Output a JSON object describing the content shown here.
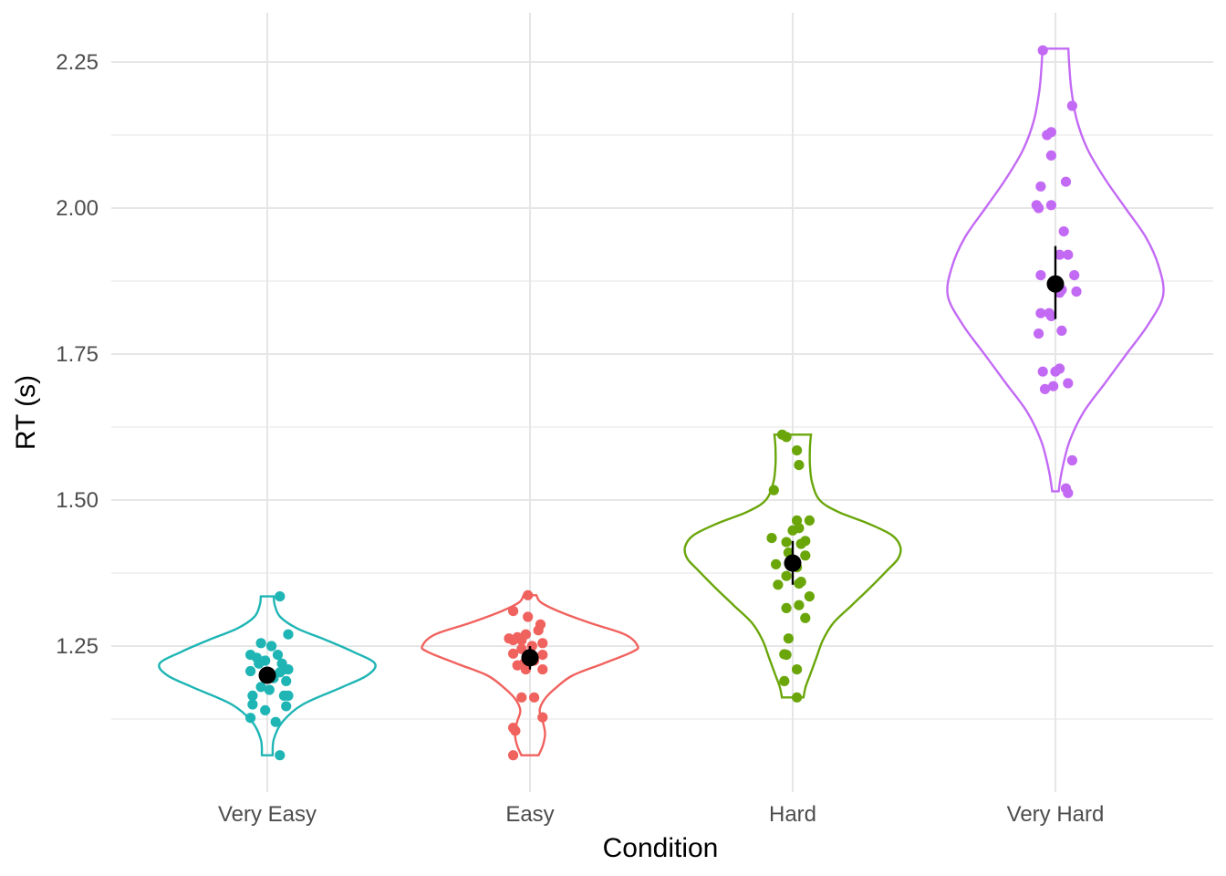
{
  "chart_data": {
    "type": "violin",
    "xlabel": "Condition",
    "ylabel": "RT (s)",
    "ylim": [
      1.04,
      2.29
    ],
    "y_ticks": [
      "1.25",
      "1.50",
      "1.75",
      "2.00",
      "2.25"
    ],
    "grid": true,
    "legend": "none",
    "categories": [
      "Very Easy",
      "Easy",
      "Hard",
      "Very Hard"
    ],
    "series": [
      {
        "category": "Very Easy",
        "color": "#1fb5b5",
        "mean": 1.2,
        "ci": [
          1.186,
          1.214
        ],
        "violin": {
          "min": 1.063,
          "max": 1.335,
          "profile": [
            [
              1.063,
              0.05
            ],
            [
              1.09,
              0.06
            ],
            [
              1.12,
              0.14
            ],
            [
              1.15,
              0.33
            ],
            [
              1.18,
              0.7
            ],
            [
              1.2,
              0.93
            ],
            [
              1.22,
              1.0
            ],
            [
              1.24,
              0.8
            ],
            [
              1.26,
              0.55
            ],
            [
              1.28,
              0.28
            ],
            [
              1.3,
              0.12
            ],
            [
              1.32,
              0.07
            ],
            [
              1.335,
              0.06
            ]
          ]
        },
        "points": [
          [
            0.06,
            1.335
          ],
          [
            0.1,
            1.27
          ],
          [
            0.02,
            1.25
          ],
          [
            -0.03,
            1.255
          ],
          [
            0.05,
            1.235
          ],
          [
            -0.08,
            1.235
          ],
          [
            -0.05,
            1.23
          ],
          [
            -0.01,
            1.225
          ],
          [
            0.07,
            1.22
          ],
          [
            -0.04,
            1.22
          ],
          [
            0.08,
            1.21
          ],
          [
            0.1,
            1.21
          ],
          [
            -0.08,
            1.207
          ],
          [
            0.06,
            1.205
          ],
          [
            0.03,
            1.195
          ],
          [
            0.09,
            1.19
          ],
          [
            -0.03,
            1.18
          ],
          [
            0.01,
            1.175
          ],
          [
            0.08,
            1.165
          ],
          [
            0.1,
            1.165
          ],
          [
            -0.07,
            1.165
          ],
          [
            -0.07,
            1.15
          ],
          [
            0.09,
            1.147
          ],
          [
            -0.01,
            1.14
          ],
          [
            -0.08,
            1.127
          ],
          [
            0.04,
            1.12
          ],
          [
            0.06,
            1.063
          ]
        ]
      },
      {
        "category": "Easy",
        "color": "#f0625e",
        "mean": 1.23,
        "ci": [
          1.21,
          1.25
        ],
        "violin": {
          "min": 1.063,
          "max": 1.337,
          "profile": [
            [
              1.063,
              0.08
            ],
            [
              1.08,
              0.12
            ],
            [
              1.1,
              0.14
            ],
            [
              1.12,
              0.12
            ],
            [
              1.14,
              0.09
            ],
            [
              1.16,
              0.14
            ],
            [
              1.18,
              0.25
            ],
            [
              1.2,
              0.4
            ],
            [
              1.22,
              0.68
            ],
            [
              1.24,
              0.95
            ],
            [
              1.25,
              1.0
            ],
            [
              1.27,
              0.88
            ],
            [
              1.29,
              0.55
            ],
            [
              1.31,
              0.26
            ],
            [
              1.325,
              0.1
            ],
            [
              1.337,
              0.06
            ]
          ]
        },
        "points": [
          [
            -0.01,
            1.337
          ],
          [
            -0.08,
            1.31
          ],
          [
            -0.01,
            1.3
          ],
          [
            0.05,
            1.287
          ],
          [
            0.04,
            1.277
          ],
          [
            -0.02,
            1.27
          ],
          [
            -0.06,
            1.265
          ],
          [
            -0.1,
            1.263
          ],
          [
            -0.08,
            1.26
          ],
          [
            -0.04,
            1.26
          ],
          [
            0.06,
            1.255
          ],
          [
            0.01,
            1.25
          ],
          [
            -0.04,
            1.245
          ],
          [
            -0.08,
            1.237
          ],
          [
            0.06,
            1.235
          ],
          [
            0.0,
            1.23
          ],
          [
            0.02,
            1.225
          ],
          [
            -0.03,
            1.22
          ],
          [
            -0.06,
            1.217
          ],
          [
            -0.02,
            1.21
          ],
          [
            0.06,
            1.21
          ],
          [
            -0.04,
            1.162
          ],
          [
            0.02,
            1.162
          ],
          [
            0.06,
            1.128
          ],
          [
            -0.08,
            1.11
          ],
          [
            -0.07,
            1.105
          ],
          [
            -0.08,
            1.063
          ]
        ]
      },
      {
        "category": "Hard",
        "color": "#6aa60a",
        "mean": 1.392,
        "ci": [
          1.355,
          1.43
        ],
        "violin": {
          "min": 1.162,
          "max": 1.612,
          "profile": [
            [
              1.162,
              0.1
            ],
            [
              1.18,
              0.12
            ],
            [
              1.2,
              0.16
            ],
            [
              1.23,
              0.22
            ],
            [
              1.26,
              0.28
            ],
            [
              1.29,
              0.38
            ],
            [
              1.32,
              0.55
            ],
            [
              1.35,
              0.72
            ],
            [
              1.38,
              0.88
            ],
            [
              1.4,
              0.98
            ],
            [
              1.42,
              1.0
            ],
            [
              1.44,
              0.92
            ],
            [
              1.46,
              0.7
            ],
            [
              1.48,
              0.42
            ],
            [
              1.5,
              0.25
            ],
            [
              1.53,
              0.18
            ],
            [
              1.56,
              0.16
            ],
            [
              1.59,
              0.16
            ],
            [
              1.612,
              0.17
            ]
          ]
        },
        "points": [
          [
            -0.05,
            1.612
          ],
          [
            -0.03,
            1.608
          ],
          [
            0.02,
            1.585
          ],
          [
            0.03,
            1.56
          ],
          [
            -0.09,
            1.517
          ],
          [
            0.02,
            1.465
          ],
          [
            0.08,
            1.465
          ],
          [
            0.03,
            1.452
          ],
          [
            0.0,
            1.448
          ],
          [
            -0.1,
            1.435
          ],
          [
            0.06,
            1.43
          ],
          [
            -0.03,
            1.428
          ],
          [
            0.04,
            1.425
          ],
          [
            -0.02,
            1.41
          ],
          [
            0.06,
            1.405
          ],
          [
            -0.08,
            1.39
          ],
          [
            0.02,
            1.385
          ],
          [
            -0.03,
            1.37
          ],
          [
            0.04,
            1.36
          ],
          [
            0.03,
            1.357
          ],
          [
            -0.07,
            1.355
          ],
          [
            0.08,
            1.335
          ],
          [
            0.03,
            1.32
          ],
          [
            -0.03,
            1.315
          ],
          [
            0.06,
            1.298
          ],
          [
            -0.02,
            1.263
          ],
          [
            -0.04,
            1.236
          ],
          [
            -0.03,
            1.235
          ],
          [
            0.02,
            1.21
          ],
          [
            -0.04,
            1.19
          ],
          [
            0.02,
            1.162
          ]
        ]
      },
      {
        "category": "Very Hard",
        "color": "#c36af5",
        "mean": 1.87,
        "ci": [
          1.81,
          1.935
        ],
        "violin": {
          "min": 1.515,
          "max": 2.273,
          "profile": [
            [
              1.515,
              0.03
            ],
            [
              1.55,
              0.06
            ],
            [
              1.6,
              0.13
            ],
            [
              1.65,
              0.26
            ],
            [
              1.7,
              0.46
            ],
            [
              1.75,
              0.66
            ],
            [
              1.8,
              0.86
            ],
            [
              1.85,
              1.0
            ],
            [
              1.9,
              0.96
            ],
            [
              1.95,
              0.84
            ],
            [
              2.0,
              0.65
            ],
            [
              2.05,
              0.46
            ],
            [
              2.1,
              0.3
            ],
            [
              2.15,
              0.2
            ],
            [
              2.2,
              0.15
            ],
            [
              2.24,
              0.13
            ],
            [
              2.273,
              0.12
            ]
          ]
        },
        "points": [
          [
            -0.06,
            2.27
          ],
          [
            0.08,
            2.175
          ],
          [
            -0.02,
            2.13
          ],
          [
            -0.04,
            2.125
          ],
          [
            -0.02,
            2.09
          ],
          [
            0.05,
            2.045
          ],
          [
            -0.07,
            2.037
          ],
          [
            -0.09,
            2.005
          ],
          [
            -0.02,
            2.005
          ],
          [
            -0.08,
            2.0
          ],
          [
            0.04,
            1.96
          ],
          [
            0.06,
            1.92
          ],
          [
            0.02,
            1.92
          ],
          [
            -0.07,
            1.885
          ],
          [
            0.09,
            1.885
          ],
          [
            0.03,
            1.86
          ],
          [
            0.1,
            1.857
          ],
          [
            0.02,
            1.855
          ],
          [
            -0.07,
            1.82
          ],
          [
            -0.03,
            1.82
          ],
          [
            -0.02,
            1.815
          ],
          [
            0.03,
            1.79
          ],
          [
            -0.08,
            1.785
          ],
          [
            0.02,
            1.725
          ],
          [
            0.0,
            1.72
          ],
          [
            -0.06,
            1.72
          ],
          [
            0.06,
            1.7
          ],
          [
            -0.01,
            1.695
          ],
          [
            -0.05,
            1.69
          ],
          [
            0.08,
            1.568
          ],
          [
            0.05,
            1.52
          ],
          [
            0.06,
            1.512
          ]
        ]
      }
    ]
  }
}
